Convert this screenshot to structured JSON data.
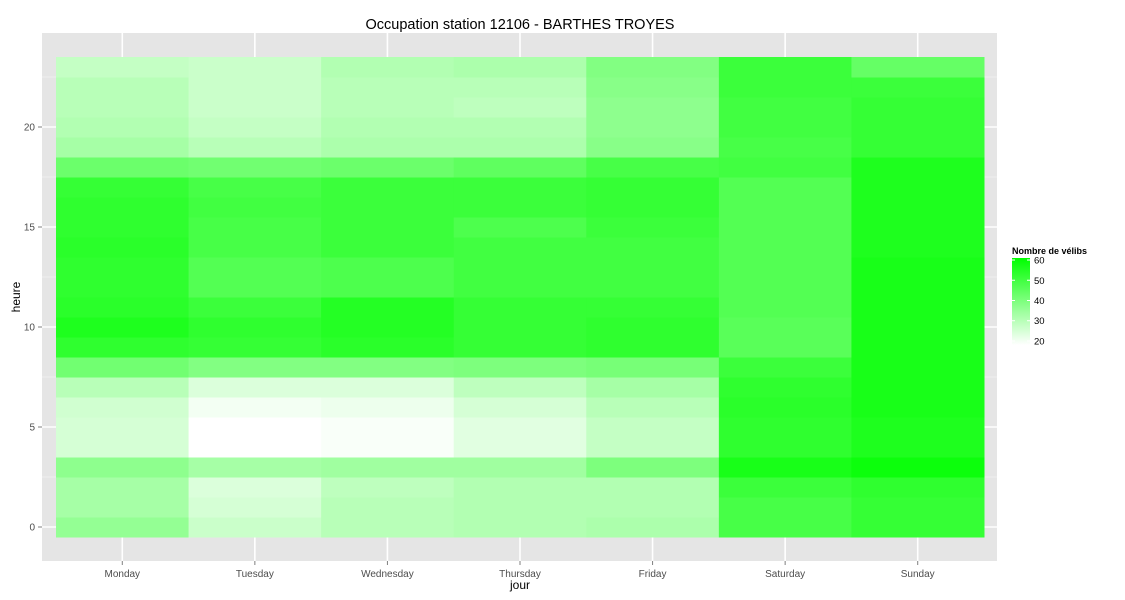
{
  "chart_data": {
    "type": "heatmap",
    "title": "Occupation station 12106 - BARTHES TROYES",
    "xlabel": "jour",
    "ylabel": "heure",
    "x": [
      "Monday",
      "Tuesday",
      "Wednesday",
      "Thursday",
      "Friday",
      "Saturday",
      "Sunday"
    ],
    "y": [
      0,
      1,
      2,
      3,
      4,
      5,
      6,
      7,
      8,
      9,
      10,
      11,
      12,
      13,
      14,
      15,
      16,
      17,
      18,
      19,
      20,
      21,
      22,
      23
    ],
    "y_ticks": [
      0,
      5,
      10,
      15,
      20
    ],
    "ylim": [
      -0.5,
      23.5
    ],
    "grid": true,
    "colorscale": {
      "low": "#ffffff",
      "high": "#00ff00",
      "min": 18,
      "max": 61
    },
    "legend": {
      "title": "Nombre de vélibs",
      "ticks": [
        20,
        30,
        40,
        50,
        60
      ],
      "position": "right"
    },
    "values": [
      [
        36,
        27,
        30,
        31,
        32,
        49,
        52
      ],
      [
        33,
        25,
        30,
        31,
        31,
        49,
        52
      ],
      [
        33,
        24,
        29,
        31,
        31,
        51,
        53
      ],
      [
        37,
        33,
        34,
        34,
        40,
        57,
        59
      ],
      [
        25,
        18,
        19,
        23,
        28,
        53,
        56
      ],
      [
        25,
        18,
        19,
        23,
        28,
        53,
        56
      ],
      [
        26,
        20,
        21,
        25,
        30,
        54,
        57
      ],
      [
        30,
        24,
        24,
        29,
        33,
        53,
        57
      ],
      [
        42,
        39,
        39,
        40,
        41,
        51,
        57
      ],
      [
        53,
        52,
        54,
        52,
        53,
        46,
        57
      ],
      [
        56,
        53,
        55,
        52,
        53,
        46,
        57
      ],
      [
        54,
        51,
        55,
        52,
        52,
        47,
        57
      ],
      [
        53,
        47,
        48,
        50,
        50,
        47,
        57
      ],
      [
        53,
        47,
        48,
        50,
        50,
        47,
        57
      ],
      [
        54,
        49,
        51,
        50,
        50,
        47,
        56
      ],
      [
        53,
        49,
        51,
        48,
        51,
        47,
        56
      ],
      [
        53,
        50,
        51,
        51,
        52,
        47,
        56
      ],
      [
        52,
        49,
        51,
        51,
        52,
        47,
        56
      ],
      [
        43,
        42,
        43,
        45,
        49,
        50,
        56
      ],
      [
        33,
        30,
        32,
        32,
        38,
        49,
        52
      ],
      [
        31,
        28,
        31,
        31,
        37,
        50,
        52
      ],
      [
        30,
        27,
        30,
        29,
        37,
        50,
        52
      ],
      [
        30,
        27,
        30,
        30,
        38,
        51,
        51
      ],
      [
        28,
        27,
        31,
        32,
        39,
        51,
        44
      ]
    ]
  }
}
